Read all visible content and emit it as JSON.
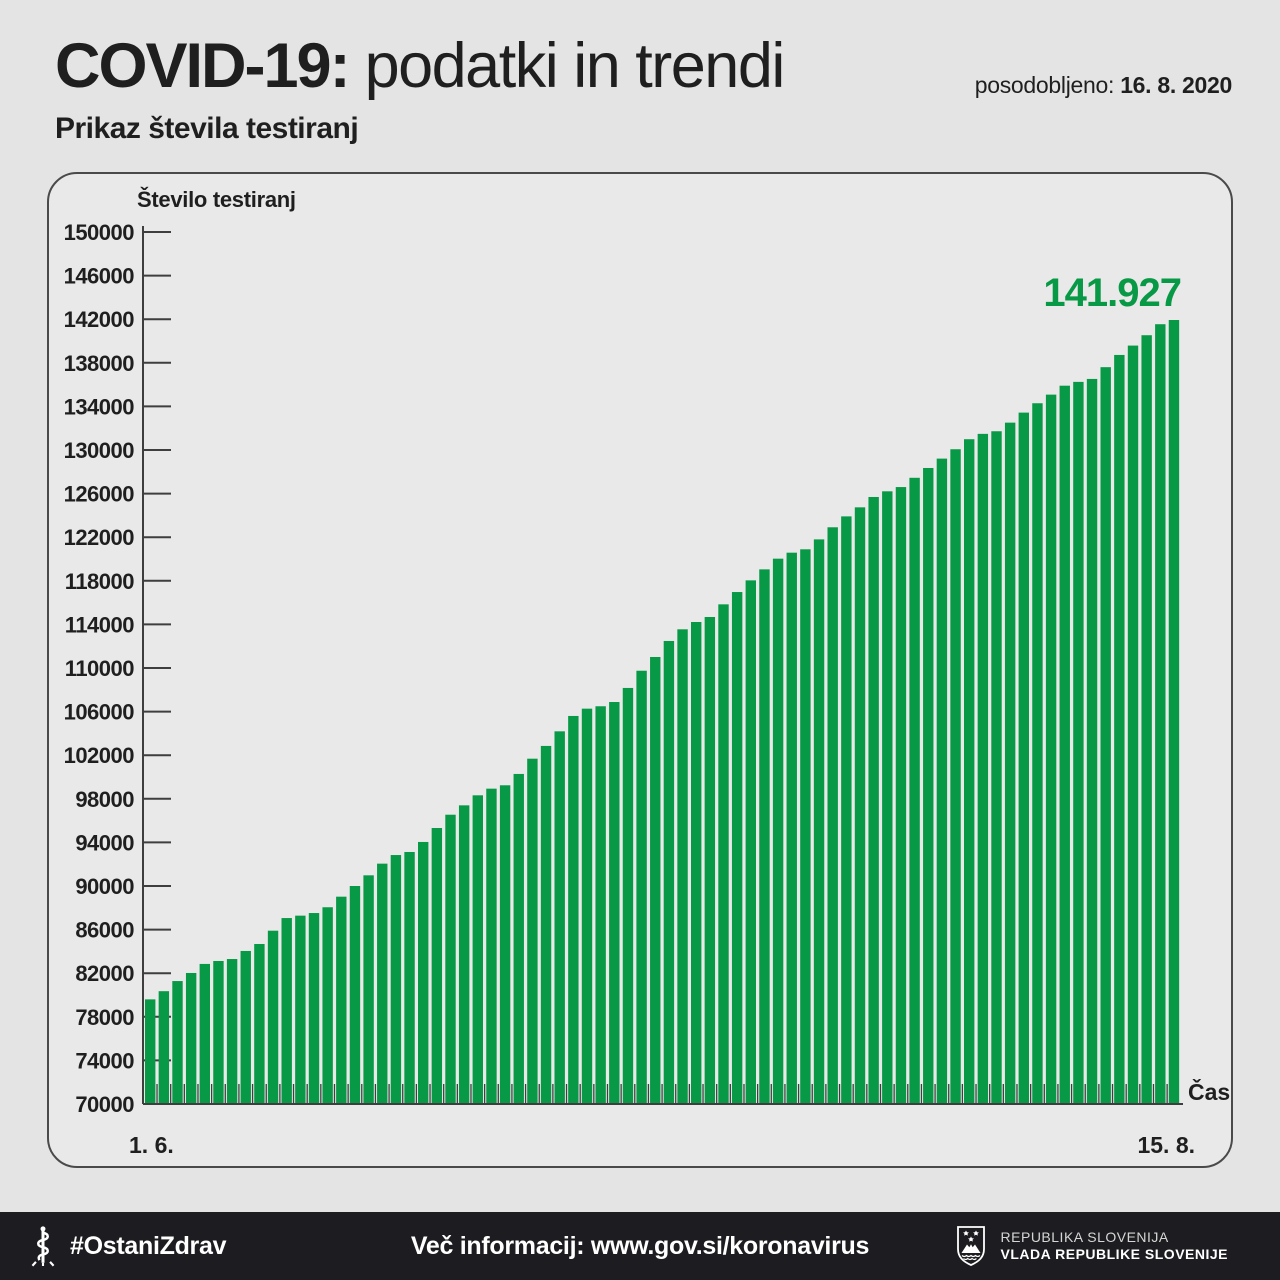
{
  "header": {
    "title_bold": "COVID-19:",
    "title_light": " podatki in trendi",
    "updated_label": "posodobljeno: ",
    "updated_date": "16. 8. 2020",
    "subtitle": "Prikaz števila testiranj"
  },
  "chart_data": {
    "type": "bar",
    "title": "Prikaz števila testiranj",
    "ylabel": "Število testiranj",
    "xlabel": "Čas",
    "ylim": [
      70000,
      150000
    ],
    "ytick_step": 4000,
    "grid": false,
    "bar_color": "#089946",
    "x_first_label": "1. 6.",
    "x_last_label": "15. 8.",
    "last_value_label": "141.927",
    "last_value": 141927,
    "values": [
      79600,
      80350,
      81280,
      82020,
      82850,
      83120,
      83300,
      84040,
      84680,
      85900,
      87060,
      87280,
      87520,
      88050,
      89020,
      90000,
      90980,
      92050,
      92840,
      93120,
      94040,
      95320,
      96540,
      97400,
      98320,
      98930,
      99240,
      100280,
      101680,
      102850,
      104190,
      105600,
      106270,
      106490,
      106880,
      108170,
      109750,
      111010,
      112480,
      113550,
      114220,
      114680,
      115840,
      116970,
      118040,
      119050,
      120030,
      120580,
      120890,
      121800,
      122910,
      123910,
      124740,
      125690,
      126210,
      126600,
      127450,
      128350,
      129210,
      130070,
      130990,
      131480,
      131720,
      132510,
      133430,
      134290,
      135080,
      135900,
      136250,
      136520,
      137600,
      138720,
      139580,
      140530,
      141540,
      141927
    ]
  },
  "footer": {
    "hashtag": "#OstaniZdrav",
    "info": "Več informacij: www.gov.si/koronavirus",
    "gov_line1": "REPUBLIKA SLOVENIJA",
    "gov_line2": "VLADA REPUBLIKE SLOVENIJE"
  },
  "colors": {
    "accent_green": "#089946",
    "footer_bg": "#1d1d21",
    "axis": "#3e3e3e",
    "panel_bg": "#e9e9e9",
    "page_bg": "#e4e4e4"
  }
}
